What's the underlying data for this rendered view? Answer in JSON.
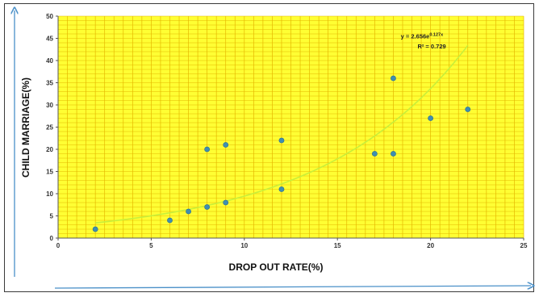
{
  "chart_data": {
    "type": "scatter",
    "title": "",
    "xlabel": "DROP OUT RATE(%)",
    "ylabel": "CHILD MARRIAGE(%)",
    "xlim": [
      0,
      25
    ],
    "ylim": [
      0,
      50
    ],
    "xticks": [
      0,
      5,
      10,
      15,
      20,
      25
    ],
    "yticks": [
      0,
      5,
      10,
      15,
      20,
      25,
      30,
      35,
      40,
      45,
      50
    ],
    "grid": true,
    "legend": "none",
    "colors": {
      "plot_bg": "#ffff33",
      "grid": "#e6b800",
      "point": "#3f8fb0",
      "trendline": "#c8ef3a",
      "arrow": "#4a90c8"
    },
    "points": [
      {
        "x": 2,
        "y": 2
      },
      {
        "x": 6,
        "y": 4
      },
      {
        "x": 7,
        "y": 6
      },
      {
        "x": 8,
        "y": 7
      },
      {
        "x": 8,
        "y": 20
      },
      {
        "x": 9,
        "y": 8
      },
      {
        "x": 9,
        "y": 21
      },
      {
        "x": 12,
        "y": 11
      },
      {
        "x": 12,
        "y": 22
      },
      {
        "x": 17,
        "y": 19
      },
      {
        "x": 18,
        "y": 19
      },
      {
        "x": 18,
        "y": 36
      },
      {
        "x": 20,
        "y": 27
      },
      {
        "x": 22,
        "y": 29
      }
    ],
    "trendline": {
      "type": "exponential",
      "a": 2.656,
      "b": 0.127,
      "equation_label": "y = 2.656e",
      "equation_exponent": "0.127x",
      "r2_label": "R² = 0.729"
    }
  }
}
